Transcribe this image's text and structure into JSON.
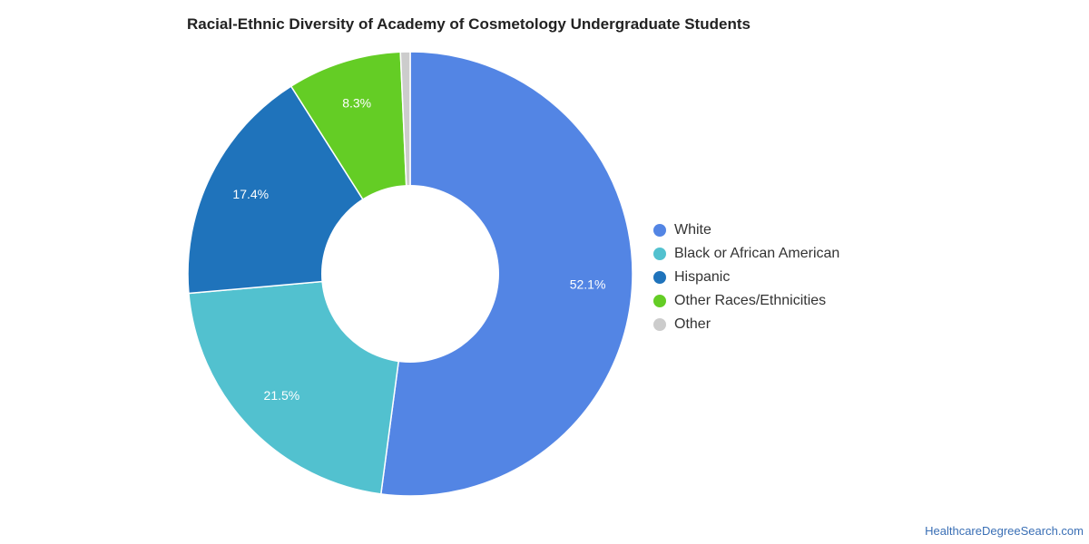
{
  "chart_data": {
    "type": "pie",
    "title": "Racial-Ethnic Diversity of Academy of Cosmetology Undergraduate Students",
    "categories": [
      "White",
      "Black or African American",
      "Hispanic",
      "Other Races/Ethnicities",
      "Other"
    ],
    "values": [
      52.1,
      21.5,
      17.4,
      8.3,
      0.7
    ],
    "value_labels": [
      "52.1%",
      "21.5%",
      "17.4%",
      "8.3%",
      ""
    ],
    "colors": [
      "#5385e4",
      "#52c1cf",
      "#1f73bb",
      "#64cd25",
      "#cccccc"
    ],
    "donut": true,
    "legend_position": "right"
  },
  "source_credit": "HealthcareDegreeSearch.com"
}
